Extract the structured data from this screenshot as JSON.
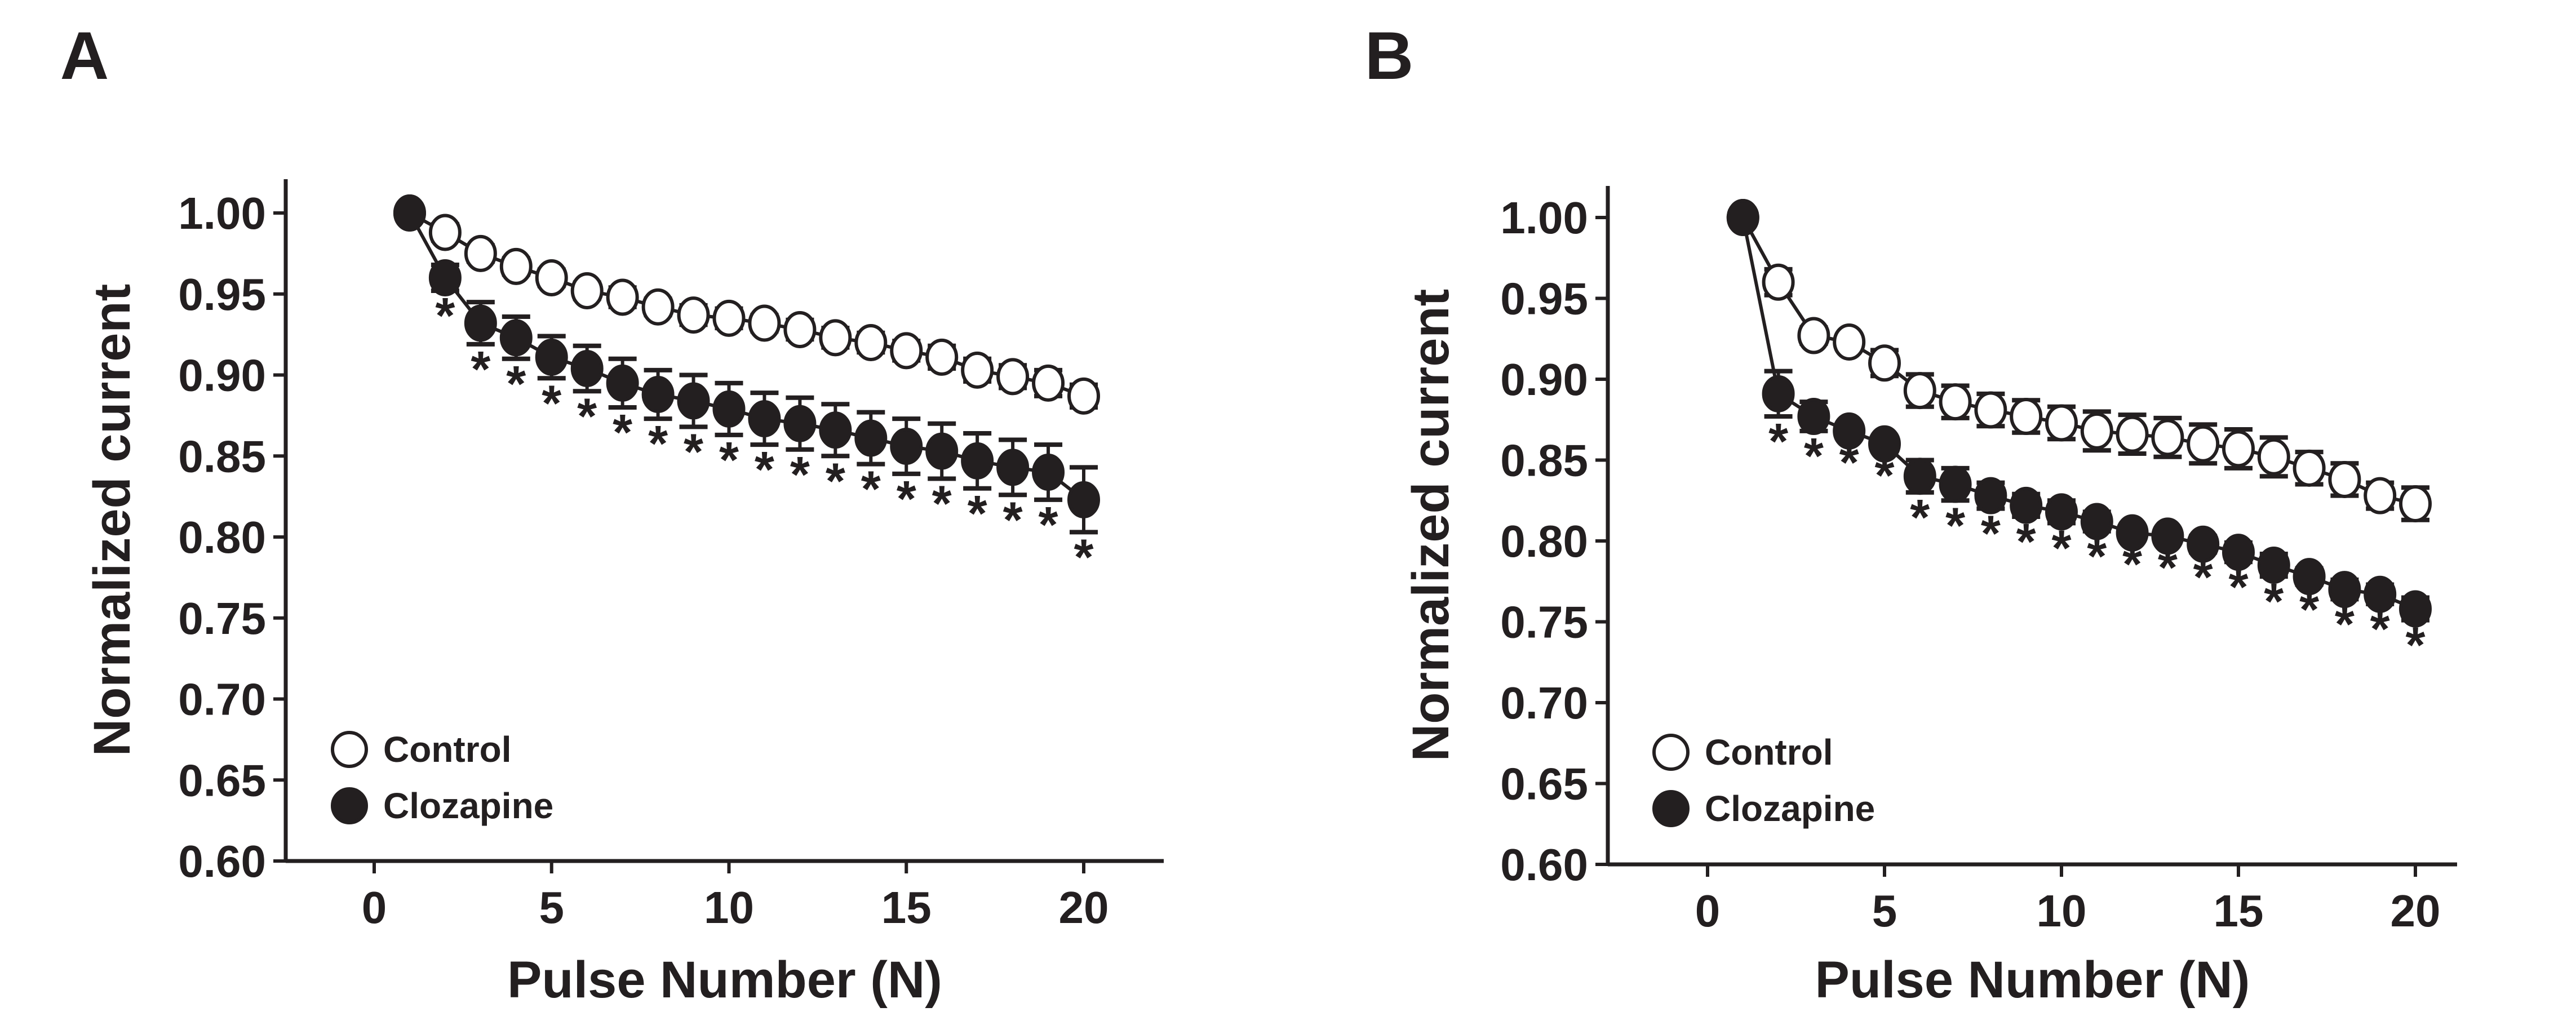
{
  "chart_data": [
    {
      "type": "line",
      "panel_label": "A",
      "xlabel": "Pulse Number (N)",
      "ylabel": "Normalized current",
      "xlim": [
        -2,
        22
      ],
      "ylim": [
        0.6,
        1.0
      ],
      "xticks": [
        "0",
        "5",
        "10",
        "15",
        "20"
      ],
      "yticks": [
        "0.60",
        "0.65",
        "0.70",
        "0.75",
        "0.80",
        "0.85",
        "0.90",
        "0.95",
        "1.00"
      ],
      "legend": {
        "position": "bottom-left",
        "entries": [
          "Control",
          "Clozapine"
        ]
      },
      "x": [
        1,
        2,
        3,
        4,
        5,
        6,
        7,
        8,
        9,
        10,
        11,
        12,
        13,
        14,
        15,
        16,
        17,
        18,
        19,
        20
      ],
      "series": [
        {
          "name": "Control",
          "marker": "open-circle",
          "values": [
            1.0,
            0.988,
            0.975,
            0.967,
            0.96,
            0.952,
            0.948,
            0.942,
            0.937,
            0.935,
            0.932,
            0.928,
            0.923,
            0.92,
            0.915,
            0.911,
            0.903,
            0.899,
            0.895,
            0.887
          ],
          "error": [
            0,
            0.005,
            0.005,
            0.005,
            0.005,
            0.005,
            0.006,
            0.005,
            0.006,
            0.006,
            0.005,
            0.006,
            0.006,
            0.006,
            0.006,
            0.007,
            0.007,
            0.007,
            0.008,
            0.007
          ]
        },
        {
          "name": "Clozapine",
          "marker": "filled-circle",
          "values": [
            1.0,
            0.96,
            0.932,
            0.923,
            0.911,
            0.904,
            0.895,
            0.888,
            0.884,
            0.879,
            0.873,
            0.87,
            0.866,
            0.861,
            0.856,
            0.853,
            0.847,
            0.843,
            0.84,
            0.823
          ],
          "error": [
            0,
            0.008,
            0.013,
            0.013,
            0.013,
            0.014,
            0.015,
            0.015,
            0.016,
            0.016,
            0.016,
            0.016,
            0.016,
            0.016,
            0.017,
            0.017,
            0.017,
            0.017,
            0.017,
            0.02
          ]
        }
      ],
      "significance_marker": "*",
      "significant_x": [
        2,
        3,
        4,
        5,
        6,
        7,
        8,
        9,
        10,
        11,
        12,
        13,
        14,
        15,
        16,
        17,
        18,
        19,
        20
      ]
    },
    {
      "type": "line",
      "panel_label": "B",
      "xlabel": "Pulse Number (N)",
      "ylabel": "Normalized current",
      "xlim": [
        -2,
        22
      ],
      "ylim": [
        0.6,
        1.0
      ],
      "xticks": [
        "0",
        "5",
        "10",
        "15",
        "20"
      ],
      "yticks": [
        "0.60",
        "0.65",
        "0.70",
        "0.75",
        "0.80",
        "0.85",
        "0.90",
        "0.95",
        "1.00"
      ],
      "legend": {
        "position": "bottom-left",
        "entries": [
          "Control",
          "Clozapine"
        ]
      },
      "x": [
        1,
        2,
        3,
        4,
        5,
        6,
        7,
        8,
        9,
        10,
        11,
        12,
        13,
        14,
        15,
        16,
        17,
        18,
        19,
        20
      ],
      "series": [
        {
          "name": "Control",
          "marker": "open-circle",
          "values": [
            1.0,
            0.96,
            0.927,
            0.923,
            0.91,
            0.893,
            0.886,
            0.881,
            0.877,
            0.873,
            0.868,
            0.866,
            0.864,
            0.86,
            0.857,
            0.852,
            0.845,
            0.838,
            0.828,
            0.823
          ],
          "error": [
            0,
            0.008,
            0.005,
            0.004,
            0.008,
            0.01,
            0.01,
            0.01,
            0.01,
            0.01,
            0.012,
            0.012,
            0.012,
            0.012,
            0.012,
            0.012,
            0.01,
            0.01,
            0.008,
            0.01
          ]
        },
        {
          "name": "Clozapine",
          "marker": "filled-circle",
          "values": [
            1.0,
            0.891,
            0.877,
            0.868,
            0.86,
            0.84,
            0.835,
            0.828,
            0.822,
            0.818,
            0.812,
            0.805,
            0.803,
            0.798,
            0.793,
            0.785,
            0.778,
            0.77,
            0.767,
            0.758
          ],
          "error": [
            0,
            0.014,
            0.009,
            0.004,
            0.004,
            0.01,
            0.01,
            0.008,
            0.007,
            0.007,
            0.006,
            0.004,
            0.004,
            0.005,
            0.006,
            0.007,
            0.005,
            0.006,
            0.006,
            0.007
          ]
        }
      ],
      "significance_marker": "*",
      "significant_x": [
        2,
        3,
        4,
        5,
        6,
        7,
        8,
        9,
        10,
        11,
        12,
        13,
        14,
        15,
        16,
        17,
        18,
        19,
        20
      ]
    }
  ]
}
